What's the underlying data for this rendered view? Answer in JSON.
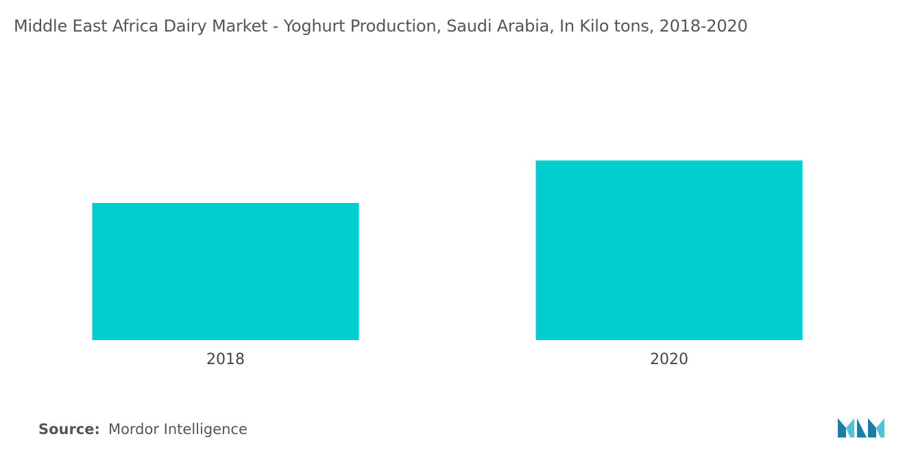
{
  "chart_data": {
    "type": "bar",
    "title": "Middle East  Africa Dairy Market - Yoghurt Production, Saudi Arabia, In Kilo tons, 2018-2020",
    "categories": [
      "2018",
      "2020"
    ],
    "values": [
      100,
      131
    ],
    "xlabel": "",
    "ylabel": "",
    "ylim": [
      0,
      135
    ],
    "grid": false,
    "legend": "none",
    "bar_color": "#00CED1"
  },
  "source": {
    "label": "Source:",
    "text": "Mordor Intelligence"
  },
  "colors": {
    "logo_dark": "#1A7FA8",
    "logo_light": "#4FC3D9"
  }
}
